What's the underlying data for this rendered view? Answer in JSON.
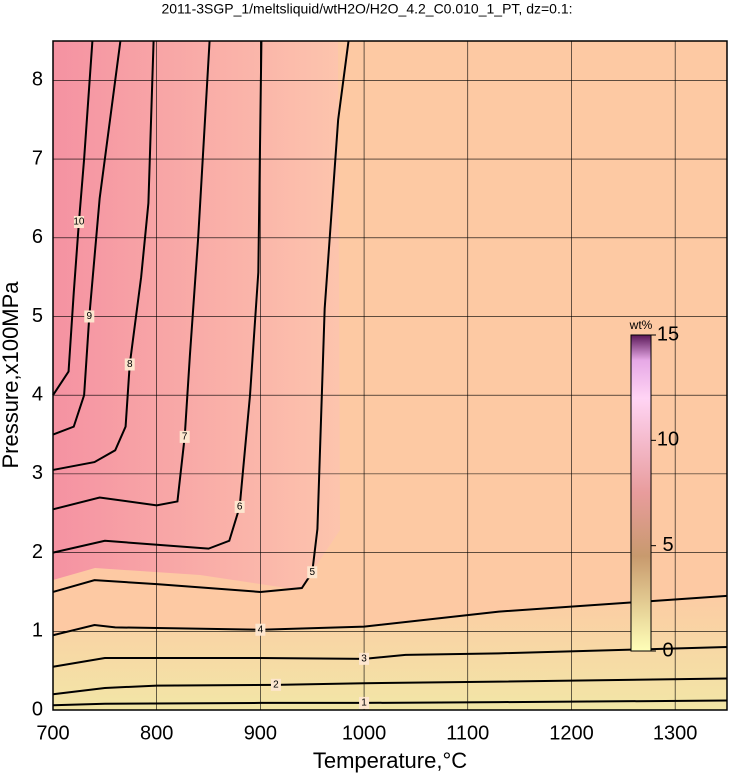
{
  "chart_data": {
    "type": "contour",
    "title": "2011-3SGP_1/meltsliquid/wtH2O/H2O_4.2_C0.010_1_PT, dz=0.1:",
    "xlabel": "Temperature,°C",
    "ylabel": "Pressure,x100MPa",
    "xlim": [
      700,
      1350
    ],
    "ylim": [
      0,
      8.5
    ],
    "xticks": [
      700,
      800,
      900,
      1000,
      1100,
      1200,
      1300
    ],
    "yticks": [
      0,
      1,
      2,
      3,
      4,
      5,
      6,
      7,
      8
    ],
    "grid": true,
    "contours": [
      {
        "level": 1,
        "x": [
          700,
          750,
          900,
          1000,
          1130,
          1350
        ],
        "y": [
          0.06,
          0.08,
          0.09,
          0.09,
          0.1,
          0.12
        ]
      },
      {
        "level": 2,
        "x": [
          700,
          750,
          800,
          915,
          1000,
          1130,
          1350
        ],
        "y": [
          0.2,
          0.28,
          0.31,
          0.32,
          0.34,
          0.36,
          0.4
        ]
      },
      {
        "level": 3,
        "x": [
          700,
          750,
          900,
          1000,
          1040,
          1130,
          1350
        ],
        "y": [
          0.55,
          0.66,
          0.66,
          0.65,
          0.7,
          0.72,
          0.8
        ]
      },
      {
        "level": 4,
        "x": [
          700,
          740,
          760,
          900,
          1000,
          1130,
          1350
        ],
        "y": [
          0.95,
          1.08,
          1.05,
          1.02,
          1.06,
          1.25,
          1.45
        ]
      },
      {
        "level": 5,
        "x": [
          700,
          740,
          800,
          900,
          940,
          950,
          955,
          962,
          975,
          985
        ],
        "y": [
          1.5,
          1.65,
          1.6,
          1.5,
          1.55,
          1.75,
          2.3,
          5.1,
          7.5,
          8.5
        ]
      },
      {
        "level": 6,
        "x": [
          700,
          750,
          850,
          870,
          880,
          890,
          898,
          901
        ],
        "y": [
          2.0,
          2.15,
          2.05,
          2.15,
          2.58,
          4.0,
          5.56,
          8.5
        ]
      },
      {
        "level": 7,
        "x": [
          700,
          745,
          800,
          820,
          827,
          832,
          840,
          851
        ],
        "y": [
          2.55,
          2.7,
          2.6,
          2.65,
          3.47,
          4.5,
          6.0,
          8.5
        ]
      },
      {
        "level": 8,
        "x": [
          700,
          740,
          760,
          770,
          774,
          785,
          792,
          797
        ],
        "y": [
          3.05,
          3.15,
          3.3,
          3.6,
          4.39,
          5.5,
          6.44,
          8.5
        ]
      },
      {
        "level": 9,
        "x": [
          700,
          720,
          730,
          735,
          745,
          755,
          765
        ],
        "y": [
          3.5,
          3.6,
          4.0,
          5.0,
          6.5,
          7.5,
          8.5
        ]
      },
      {
        "level": 10,
        "x": [
          700,
          715,
          720,
          725,
          730,
          738
        ],
        "y": [
          4.0,
          4.3,
          5.3,
          6.2,
          7.0,
          8.5
        ]
      }
    ],
    "colorbar": {
      "label": "wt%",
      "clim": [
        0,
        15
      ],
      "ticks": [
        0,
        5,
        10,
        15
      ]
    }
  }
}
